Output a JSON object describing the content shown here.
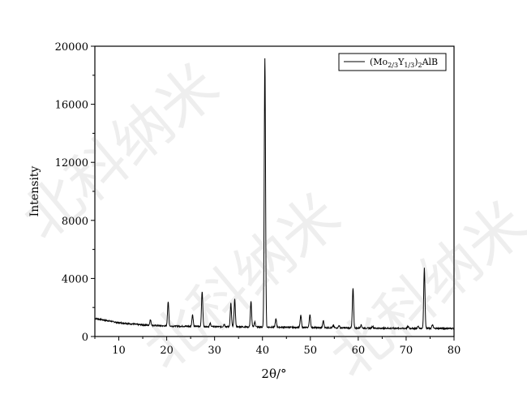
{
  "chart_data": {
    "type": "line",
    "xlabel": "2θ/°",
    "ylabel": "Intensity",
    "xlim": [
      5,
      80
    ],
    "ylim": [
      0,
      20000
    ],
    "xticks": [
      10,
      20,
      30,
      40,
      50,
      60,
      70,
      80
    ],
    "yticks": [
      0,
      4000,
      8000,
      12000,
      16000,
      20000
    ],
    "grid": false,
    "legend_position": "top-right",
    "series": [
      {
        "name": "(Mo2/3Y1/3)2AlB",
        "color": "#000000",
        "baseline": [
          [
            5,
            1250
          ],
          [
            10,
            950
          ],
          [
            15,
            800
          ],
          [
            20,
            720
          ],
          [
            30,
            680
          ],
          [
            40,
            650
          ],
          [
            50,
            620
          ],
          [
            60,
            580
          ],
          [
            70,
            560
          ],
          [
            80,
            560
          ]
        ],
        "peaks": [
          [
            16.6,
            1150
          ],
          [
            20.3,
            2400
          ],
          [
            25.4,
            1500
          ],
          [
            27.4,
            3100
          ],
          [
            29.1,
            900
          ],
          [
            32.0,
            850
          ],
          [
            33.4,
            2300
          ],
          [
            34.2,
            2550
          ],
          [
            37.6,
            2400
          ],
          [
            38.4,
            1000
          ],
          [
            40.5,
            19200
          ],
          [
            42.8,
            1200
          ],
          [
            48.0,
            1450
          ],
          [
            49.9,
            1500
          ],
          [
            52.7,
            1100
          ],
          [
            54.8,
            750
          ],
          [
            56.0,
            750
          ],
          [
            58.9,
            3300
          ],
          [
            60.6,
            800
          ],
          [
            63.0,
            700
          ],
          [
            70.4,
            700
          ],
          [
            72.5,
            700
          ],
          [
            73.8,
            4700
          ],
          [
            75.5,
            800
          ]
        ]
      }
    ]
  },
  "legend": {
    "main": "(Mo",
    "sub1": "2/3",
    "mid": "Y",
    "sub2": "1/3",
    "close": ")",
    "sub3": "2",
    "tail": "AlB"
  },
  "watermark": "北科纳米"
}
